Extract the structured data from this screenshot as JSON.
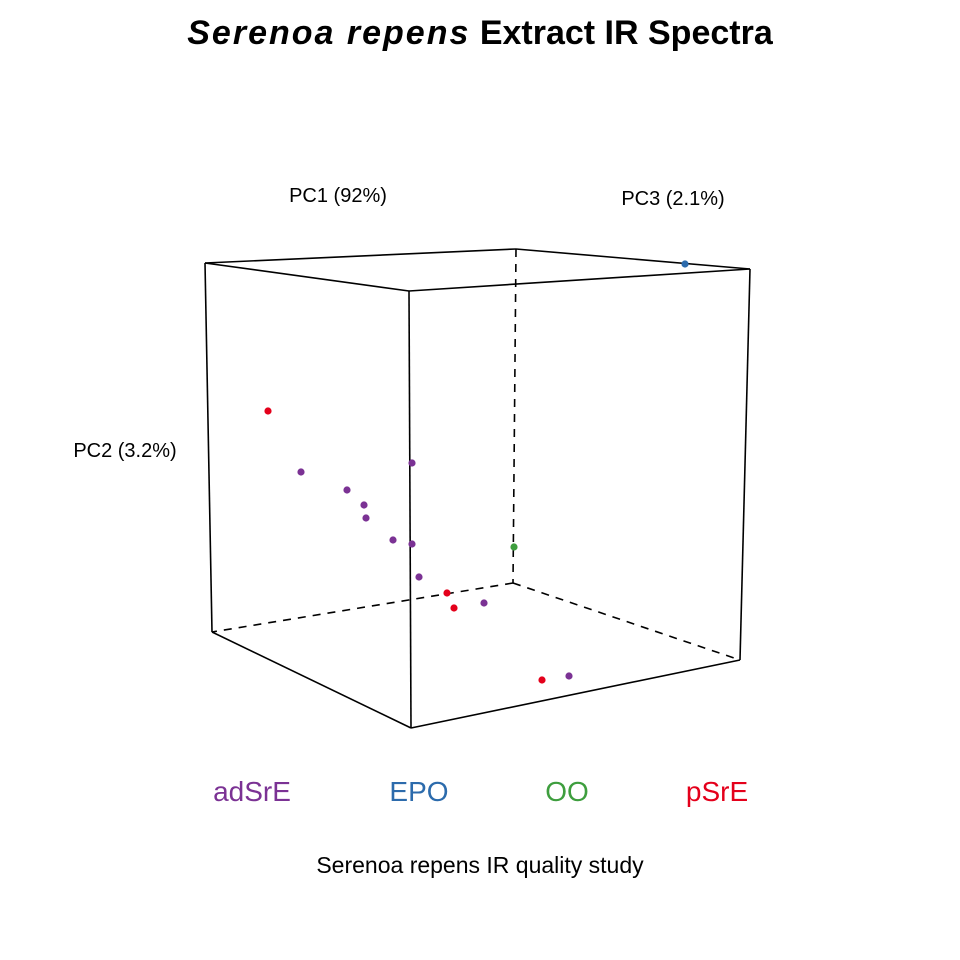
{
  "chart_data": {
    "type": "scatter3d",
    "title": {
      "italic": "Serenoa repens",
      "rest": " Extract IR Spectra"
    },
    "axes": {
      "pc1": "PC1 (92%)",
      "pc2": "PC2 (3.2%)",
      "pc3": "PC3 (2.1%)"
    },
    "subtitle": "Serenoa repens IR quality study",
    "groups": [
      {
        "name": "adSrE",
        "color": "#7B3294"
      },
      {
        "name": "EPO",
        "color": "#2C6BAC"
      },
      {
        "name": "OO",
        "color": "#3E9E3E"
      },
      {
        "name": "pSrE",
        "color": "#E4001B"
      }
    ],
    "points": [
      {
        "group": "pSrE",
        "pc1": 0.165,
        "pc2": 0.72,
        "pc3": 0.0
      },
      {
        "group": "adSrE",
        "pc1": 0.23,
        "pc2": 0.56,
        "pc3": 0.0
      },
      {
        "group": "adSrE",
        "pc1": 0.33,
        "pc2": 0.49,
        "pc3": 0.0
      },
      {
        "group": "adSrE",
        "pc1": 0.38,
        "pc2": 0.45,
        "pc3": 0.0
      },
      {
        "group": "adSrE",
        "pc1": 0.385,
        "pc2": 0.41,
        "pc3": 0.0
      },
      {
        "group": "adSrE",
        "pc1": 0.495,
        "pc2": 0.605,
        "pc3": 0.05
      },
      {
        "group": "adSrE",
        "pc1": 0.45,
        "pc2": 0.33,
        "pc3": 0.02
      },
      {
        "group": "adSrE",
        "pc1": 0.495,
        "pc2": 0.32,
        "pc3": 0.06
      },
      {
        "group": "adSrE",
        "pc1": 0.51,
        "pc2": 0.22,
        "pc3": 0.07
      },
      {
        "group": "pSrE",
        "pc1": 0.565,
        "pc2": 0.16,
        "pc3": 0.11
      },
      {
        "group": "pSrE",
        "pc1": 0.58,
        "pc2": 0.125,
        "pc3": 0.12
      },
      {
        "group": "adSrE",
        "pc1": 0.66,
        "pc2": 0.145,
        "pc3": 0.15
      },
      {
        "group": "OO",
        "pc1": 0.73,
        "pc2": 0.35,
        "pc3": 0.58
      },
      {
        "group": "pSrE",
        "pc1": 0.8,
        "pc2": 0.095,
        "pc3": 0.5
      },
      {
        "group": "adSrE",
        "pc1": 0.84,
        "pc2": 0.115,
        "pc3": 0.52
      },
      {
        "group": "EPO",
        "pc1": 0.86,
        "pc2": 0.99,
        "pc3": 0.86
      }
    ]
  }
}
